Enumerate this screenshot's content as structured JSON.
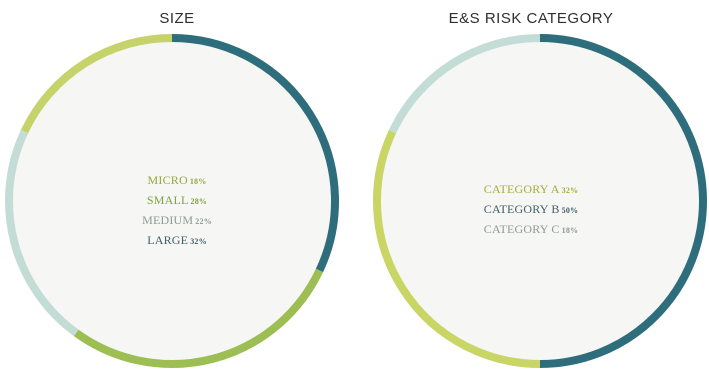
{
  "chart_data": [
    {
      "type": "pie",
      "title": "SIZE",
      "categories": [
        "MICRO",
        "SMALL",
        "MEDIUM",
        "LARGE"
      ],
      "values": [
        18,
        28,
        22,
        32
      ],
      "value_labels": [
        "18%",
        "28%",
        "22%",
        "32%"
      ],
      "colors": [
        "#c5d36a",
        "#9cbe52",
        "#c4dcd6",
        "#2e6e7c"
      ],
      "label_colors": [
        "#98a63e",
        "#7da33c",
        "#8c9a98",
        "#3e5f66"
      ],
      "legend_position": "center",
      "style": "donut-ring"
    },
    {
      "type": "pie",
      "title": "E&S RISK CATEGORY",
      "categories": [
        "CATEGORY A",
        "CATEGORY B",
        "CATEGORY C"
      ],
      "values": [
        32,
        50,
        18
      ],
      "value_labels": [
        "32%",
        "50%",
        "18%"
      ],
      "colors": [
        "#c9d665",
        "#2e6e7c",
        "#c4dcd6"
      ],
      "label_colors": [
        "#a3ae3a",
        "#3e5f66",
        "#8c9a98"
      ],
      "legend_position": "center",
      "style": "donut-ring"
    }
  ],
  "background": {
    "circle_fill": "#f6f6f4"
  }
}
